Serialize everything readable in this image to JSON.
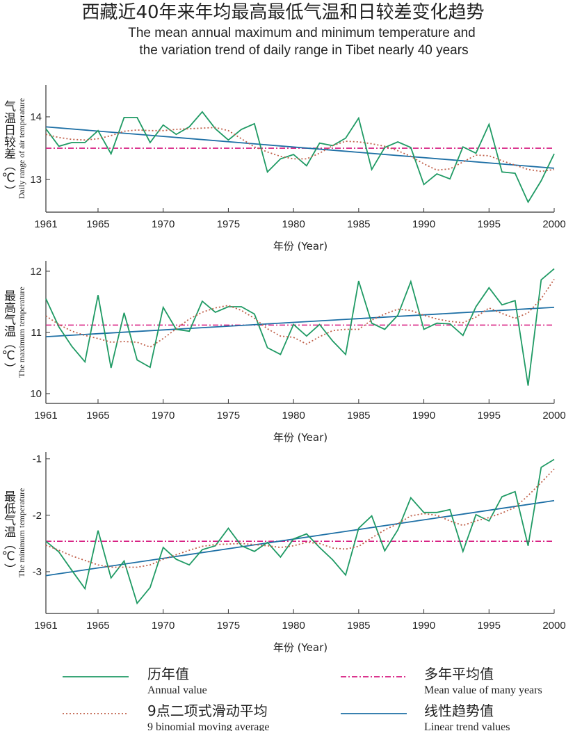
{
  "title": "西藏近40年来年均最高最低气温和日较差变化趋势",
  "subtitle": [
    "The mean annual maximum and minimum temperature and",
    "the variation trend of daily range in Tibet nearly 40 years"
  ],
  "legend": [
    {
      "name": "历年值",
      "name_en": "Annual value",
      "color": "#1f9a64",
      "dash": "none"
    },
    {
      "name": "9点二项式滑动平均",
      "name_en": "9 binomial moving average",
      "color": "#c0604a",
      "dash": "2 3"
    },
    {
      "name": "多年平均值",
      "name_en": "Mean value of many years",
      "color": "#d6197f",
      "dash": "8 3 2 3"
    },
    {
      "name": "线性趋势值",
      "name_en": "Linear trend values",
      "color": "#1d6fa5",
      "dash": "none"
    }
  ],
  "chart_data": [
    {
      "type": "line",
      "ylabel_zh": "气温日较差（℃）",
      "ylabel_en": "Daily range of air temperature",
      "xlabel": "年份 (Year)",
      "xlim": [
        1961,
        2000
      ],
      "xticks": [
        1961,
        1965,
        1970,
        1975,
        1980,
        1985,
        1990,
        1995,
        2000
      ],
      "ylim": [
        12.48,
        14.51
      ],
      "yticks": [
        13,
        14
      ],
      "x": [
        1961,
        1962,
        1963,
        1964,
        1965,
        1966,
        1967,
        1968,
        1969,
        1970,
        1971,
        1972,
        1973,
        1974,
        1975,
        1976,
        1977,
        1978,
        1979,
        1980,
        1981,
        1982,
        1983,
        1984,
        1985,
        1986,
        1987,
        1988,
        1989,
        1990,
        1991,
        1992,
        1993,
        1994,
        1995,
        1996,
        1997,
        1998,
        1999,
        2000
      ],
      "series": [
        {
          "values": [
            13.81,
            13.53,
            13.59,
            13.59,
            13.78,
            13.41,
            13.99,
            13.99,
            13.59,
            13.87,
            13.72,
            13.84,
            14.08,
            13.81,
            13.63,
            13.8,
            13.89,
            13.12,
            13.33,
            13.4,
            13.22,
            13.58,
            13.54,
            13.66,
            13.98,
            13.16,
            13.51,
            13.6,
            13.51,
            12.92,
            13.09,
            13.01,
            13.52,
            13.42,
            13.88,
            13.12,
            13.1,
            12.64,
            12.98,
            13.41
          ]
        },
        {
          "values": [
            13.72,
            13.67,
            13.64,
            13.63,
            13.65,
            13.7,
            13.77,
            13.79,
            13.78,
            13.78,
            13.8,
            13.81,
            13.82,
            13.83,
            13.78,
            13.65,
            13.52,
            13.44,
            13.37,
            13.33,
            13.33,
            13.42,
            13.54,
            13.61,
            13.6,
            13.57,
            13.53,
            13.46,
            13.37,
            13.25,
            13.15,
            13.17,
            13.28,
            13.39,
            13.38,
            13.3,
            13.23,
            13.16,
            13.13,
            13.16
          ]
        }
      ],
      "mean": 13.5,
      "trend": [
        13.84,
        13.18
      ]
    },
    {
      "type": "line",
      "ylabel_zh": "最高气温（℃）",
      "ylabel_en": "The maximum temperature",
      "xlabel": "年份 (Year)",
      "xlim": [
        1961,
        2000
      ],
      "xticks": [
        1961,
        1965,
        1970,
        1975,
        1980,
        1985,
        1990,
        1995,
        2000
      ],
      "ylim": [
        9.84,
        12.17
      ],
      "yticks": [
        10,
        11,
        12
      ],
      "x": [
        1961,
        1962,
        1963,
        1964,
        1965,
        1966,
        1967,
        1968,
        1969,
        1970,
        1971,
        1972,
        1973,
        1974,
        1975,
        1976,
        1977,
        1978,
        1979,
        1980,
        1981,
        1982,
        1983,
        1984,
        1985,
        1986,
        1987,
        1988,
        1989,
        1990,
        1991,
        1992,
        1993,
        1994,
        1995,
        1996,
        1997,
        1998,
        1999,
        2000
      ],
      "series": [
        {
          "values": [
            11.55,
            11.09,
            10.77,
            10.52,
            11.61,
            10.42,
            11.32,
            10.55,
            10.43,
            11.41,
            11.05,
            11.02,
            11.51,
            11.33,
            11.42,
            11.42,
            11.3,
            10.75,
            10.64,
            11.13,
            10.94,
            11.13,
            10.86,
            10.64,
            11.84,
            11.15,
            11.05,
            11.28,
            11.83,
            11.05,
            11.15,
            11.14,
            10.95,
            11.42,
            11.73,
            11.45,
            11.52,
            10.13,
            11.86,
            12.04
          ]
        },
        {
          "values": [
            11.27,
            11.13,
            11.02,
            10.95,
            10.9,
            10.84,
            10.85,
            10.84,
            10.76,
            10.9,
            11.06,
            11.22,
            11.33,
            11.4,
            11.44,
            11.36,
            11.23,
            11.06,
            10.94,
            10.92,
            10.81,
            10.93,
            11.03,
            11.05,
            11.05,
            11.2,
            11.3,
            11.38,
            11.36,
            11.28,
            11.22,
            11.18,
            11.16,
            11.25,
            11.4,
            11.31,
            11.23,
            11.32,
            11.55,
            11.87
          ]
        }
      ],
      "mean": 11.12,
      "trend": [
        10.93,
        11.41
      ]
    },
    {
      "type": "line",
      "ylabel_zh": "最低气温（℃）",
      "ylabel_en": "The minimum temperature",
      "xlabel": "年份 (Year)",
      "xlim": [
        1961,
        2000
      ],
      "xticks": [
        1961,
        1965,
        1970,
        1975,
        1980,
        1985,
        1990,
        1995,
        2000
      ],
      "ylim": [
        -3.74,
        -0.88
      ],
      "yticks": [
        -3,
        -2,
        -1
      ],
      "x": [
        1961,
        1962,
        1963,
        1964,
        1965,
        1966,
        1967,
        1968,
        1969,
        1970,
        1971,
        1972,
        1973,
        1974,
        1975,
        1976,
        1977,
        1978,
        1979,
        1980,
        1981,
        1982,
        1983,
        1984,
        1985,
        1986,
        1987,
        1988,
        1989,
        1990,
        1991,
        1992,
        1993,
        1994,
        1995,
        1996,
        1997,
        1998,
        1999,
        2000
      ],
      "series": [
        {
          "values": [
            -2.46,
            -2.65,
            -2.98,
            -3.3,
            -2.27,
            -3.11,
            -2.81,
            -3.56,
            -3.28,
            -2.57,
            -2.78,
            -2.88,
            -2.61,
            -2.54,
            -2.23,
            -2.54,
            -2.64,
            -2.48,
            -2.74,
            -2.42,
            -2.33,
            -2.57,
            -2.79,
            -3.06,
            -2.23,
            -2.01,
            -2.63,
            -2.26,
            -1.69,
            -1.95,
            -1.95,
            -1.9,
            -2.64,
            -1.99,
            -2.1,
            -1.67,
            -1.58,
            -2.54,
            -1.15,
            -1.01
          ]
        },
        {
          "values": [
            -2.53,
            -2.62,
            -2.72,
            -2.8,
            -2.88,
            -2.92,
            -2.92,
            -2.92,
            -2.88,
            -2.78,
            -2.7,
            -2.62,
            -2.55,
            -2.52,
            -2.51,
            -2.5,
            -2.52,
            -2.54,
            -2.57,
            -2.54,
            -2.48,
            -2.5,
            -2.58,
            -2.6,
            -2.55,
            -2.4,
            -2.26,
            -2.15,
            -2.01,
            -1.97,
            -2,
            -2.1,
            -2.18,
            -2.1,
            -2.04,
            -1.96,
            -1.86,
            -1.65,
            -1.42,
            -1.18
          ]
        }
      ],
      "mean": -2.46,
      "trend": [
        -3.07,
        -1.74
      ]
    }
  ]
}
